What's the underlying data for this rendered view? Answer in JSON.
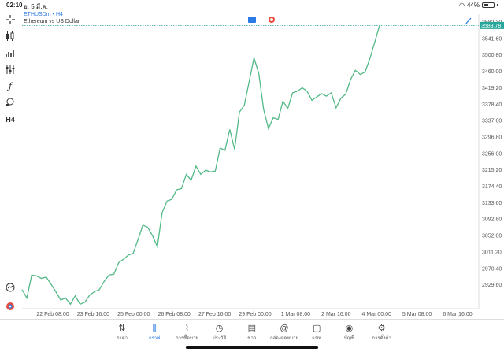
{
  "status": {
    "time": "02:10",
    "date": "อ. 5 มี.ค.",
    "battery": "44%"
  },
  "header": {
    "symbol": "ETHUSDm",
    "timeframe": "• H4",
    "description": "Ethereum vs US Dollar"
  },
  "toolbar": {
    "items": [
      {
        "name": "crosshair-icon"
      },
      {
        "name": "candles-icon"
      },
      {
        "name": "volume-icon"
      },
      {
        "name": "indicators-icon"
      },
      {
        "name": "function-icon"
      },
      {
        "name": "objects-icon"
      },
      {
        "name": "timeframe-label",
        "label": "H4"
      }
    ]
  },
  "chart_data": {
    "type": "line",
    "series": [
      {
        "color": "#53b987",
        "values": [
          2955,
          2935,
          2990,
          2988,
          2982,
          2985,
          2968,
          2950,
          2930,
          2935,
          2920,
          2940,
          2920,
          2925,
          2942,
          2950,
          2955,
          2975,
          2990,
          2992,
          3020,
          3028,
          3038,
          3042,
          3075,
          3110,
          3105,
          3085,
          3058,
          3140,
          3168,
          3172,
          3195,
          3198,
          3232,
          3218,
          3252,
          3232,
          3242,
          3238,
          3240,
          3295,
          3290,
          3340,
          3292,
          3382,
          3398,
          3455,
          3512,
          3475,
          3388,
          3342,
          3368,
          3364,
          3408,
          3390,
          3428,
          3432,
          3440,
          3432,
          3410,
          3418,
          3426,
          3420,
          3428,
          3392,
          3415,
          3425,
          3460,
          3482,
          3472,
          3478,
          3510,
          3550,
          3590
        ]
      }
    ],
    "x_tick_labels": [
      "22 Feb 08:00",
      "23 Feb 16:00",
      "25 Feb 00:00",
      "26 Feb 08:00",
      "27 Feb 16:00",
      "29 Feb 00:00",
      "1 Mar 08:00",
      "2 Mar 16:00",
      "4 Mar 00:00",
      "5 Mar 08:00",
      "6 Mar 16:00"
    ],
    "y_tick_labels": [
      "3582.30",
      "3541.60",
      "3500.80",
      "3460.00",
      "3419.20",
      "3378.40",
      "3337.60",
      "3296.80",
      "3256.00",
      "3215.20",
      "3174.40",
      "3133.60",
      "3092.80",
      "3052.00",
      "3011.20",
      "2970.40",
      "2929.60"
    ],
    "ylim": [
      2909.2,
      3617
    ],
    "current_price": "3589.78",
    "current_price_color": "#26a69a",
    "grid": false
  },
  "nav": {
    "items": [
      {
        "name": "nav-quotes",
        "icon": "quotes-icon",
        "glyph": "⇅",
        "label": "ราคา",
        "active": false
      },
      {
        "name": "nav-chart",
        "icon": "chart-icon",
        "glyph": "⫼",
        "label": "กราฟ",
        "active": true
      },
      {
        "name": "nav-trade",
        "icon": "trade-icon",
        "glyph": "⌇",
        "label": "การซื้อขาย",
        "active": false
      },
      {
        "name": "nav-history",
        "icon": "history-icon",
        "glyph": "◷",
        "label": "ประวัติ",
        "active": false
      },
      {
        "name": "nav-news",
        "icon": "news-icon",
        "glyph": "▤",
        "label": "ข่าว",
        "active": false
      },
      {
        "name": "nav-mailbox",
        "icon": "mail-icon",
        "glyph": "@",
        "label": "กล่องจดหมาย",
        "active": false
      },
      {
        "name": "nav-chat",
        "icon": "chat-icon",
        "glyph": "▢",
        "label": "แชท",
        "active": false
      },
      {
        "name": "nav-accounts",
        "icon": "account-icon",
        "glyph": "◉",
        "label": "บัญชี",
        "active": false
      },
      {
        "name": "nav-settings",
        "icon": "settings-icon",
        "glyph": "⚙",
        "label": "การตั้งค่า",
        "active": false
      }
    ]
  }
}
